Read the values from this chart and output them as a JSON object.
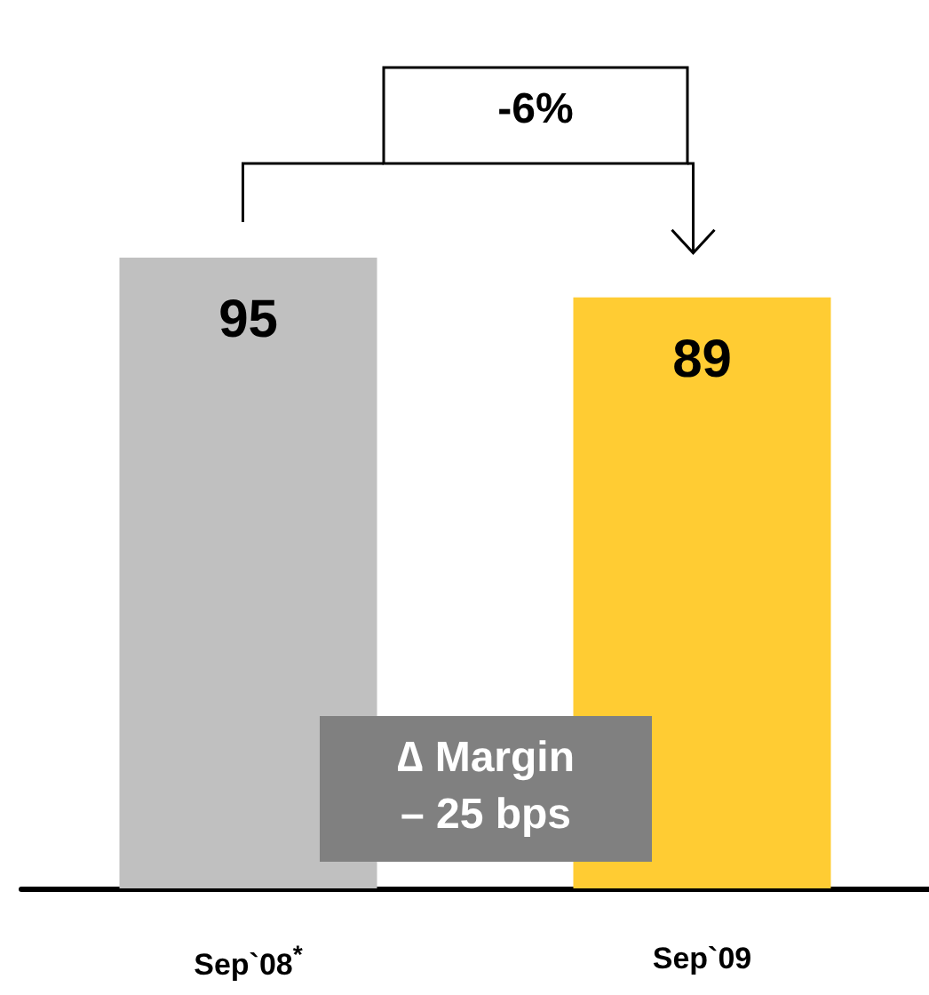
{
  "chart_data": {
    "type": "bar",
    "categories": [
      "Sep`08$^{*}$",
      "Sep`09"
    ],
    "values": [
      95,
      89
    ],
    "colors": [
      "#c0c0c0",
      "#ffcc33"
    ],
    "data_labels": true,
    "annotations": [
      "-6%",
      "∆ Margin\n– 25 bps"
    ]
  }
}
